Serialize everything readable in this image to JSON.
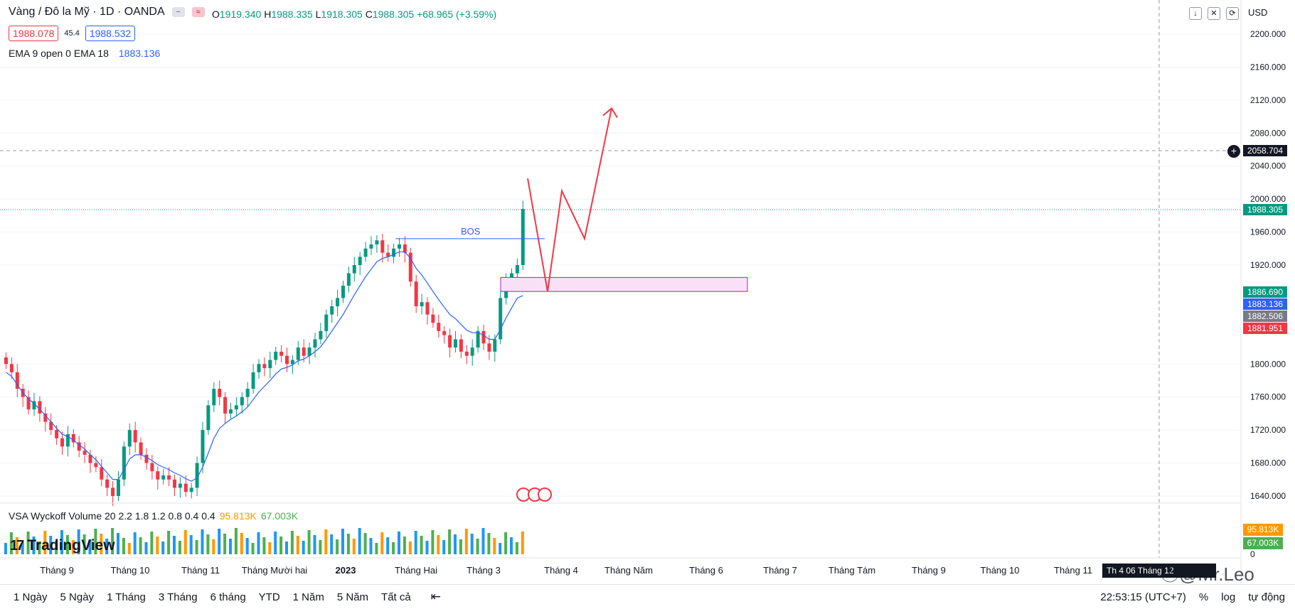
{
  "symbol": {
    "title": "Vàng / Đô la Mỹ · 1D · OANDA",
    "ohlc": {
      "o_label": "O",
      "o": "1919.340",
      "h_label": "H",
      "h": "1988.335",
      "l_label": "L",
      "l": "1918.305",
      "c_label": "C",
      "c": "1988.305",
      "change": "+68.965 (+3.59%)"
    },
    "bid": "1988.078",
    "spread": "45.4",
    "ask": "1988.532"
  },
  "indicators": {
    "ema_label": "EMA 9 open 0 EMA 18",
    "ema_value": "1883.136",
    "vsa_label": "VSA Wyckoff Volume 20 2.2 1.8 1.2 0.8 0.4 0.4",
    "vsa_value_a": "95.813K",
    "vsa_value_b": "67.003K"
  },
  "branding": {
    "logo_mark": "17",
    "logo_text": "TradingView",
    "watermark": "Mr.Leo"
  },
  "currency": "USD",
  "toolbar_icons": [
    "arrow-down-icon",
    "collapse-icon",
    "fullscreen-icon"
  ],
  "price_axis": {
    "ticks": [
      "2200.000",
      "2160.000",
      "2120.000",
      "2080.000",
      "2040.000",
      "2000.000",
      "1960.000",
      "1920.000",
      "1800.000",
      "1760.000",
      "1720.000",
      "1680.000",
      "1640.000"
    ],
    "tags": [
      {
        "label": "2058.704",
        "color": "#131722"
      },
      {
        "label": "1988.305",
        "color": "#089981"
      },
      {
        "label": "1886.690",
        "color": "#089981"
      },
      {
        "label": "1883.136",
        "color": "#2962ff"
      },
      {
        "label": "1882.506",
        "color": "#787b86"
      },
      {
        "label": "1881.951",
        "color": "#f23645"
      }
    ],
    "volume_tags": [
      {
        "label": "95.813K",
        "color": "#ff9800"
      },
      {
        "label": "67.003K",
        "color": "#4caf50"
      }
    ],
    "volume_zero": "0"
  },
  "time_axis": {
    "labels": [
      {
        "text": "Tháng 9",
        "bold": false
      },
      {
        "text": "Tháng 10",
        "bold": false
      },
      {
        "text": "Tháng 11",
        "bold": false
      },
      {
        "text": "Tháng Mười hai",
        "bold": false
      },
      {
        "text": "2023",
        "bold": true
      },
      {
        "text": "Tháng Hai",
        "bold": false
      },
      {
        "text": "Tháng 3",
        "bold": false
      },
      {
        "text": "Tháng 4",
        "bold": false
      },
      {
        "text": "Tháng Năm",
        "bold": false
      },
      {
        "text": "Tháng 6",
        "bold": false
      },
      {
        "text": "Tháng 7",
        "bold": false
      },
      {
        "text": "Tháng Tám",
        "bold": false
      },
      {
        "text": "Tháng 9",
        "bold": false
      },
      {
        "text": "Tháng 10",
        "bold": false
      },
      {
        "text": "Tháng 11",
        "bold": false
      }
    ],
    "cursor_date": "Th 4 06 Tháng 12"
  },
  "annotations": {
    "bos_label": "BOS"
  },
  "ranges": [
    "1 Ngày",
    "5 Ngày",
    "1 Tháng",
    "3 Tháng",
    "6 tháng",
    "YTD",
    "1 Năm",
    "5 Năm",
    "Tất cả"
  ],
  "footer": {
    "clock": "22:53:15 (UTC+7)",
    "percent": "%",
    "log": "log",
    "auto": "tự động"
  },
  "colors": {
    "up": "#089981",
    "down": "#f23645",
    "ema": "#2962ff",
    "arrow": "#f23645",
    "zone_fill": "#f8e1f7",
    "zone_stroke": "#9c27b0"
  },
  "chart_data": {
    "type": "candlestick",
    "ylim": [
      1620,
      2220
    ],
    "candles_close_path": [
      1800,
      1790,
      1770,
      1760,
      1745,
      1755,
      1740,
      1730,
      1720,
      1710,
      1700,
      1715,
      1705,
      1695,
      1690,
      1680,
      1675,
      1660,
      1650,
      1640,
      1660,
      1700,
      1720,
      1705,
      1690,
      1680,
      1670,
      1660,
      1665,
      1660,
      1650,
      1655,
      1645,
      1650,
      1680,
      1720,
      1750,
      1770,
      1760,
      1740,
      1745,
      1750,
      1760,
      1770,
      1790,
      1800,
      1795,
      1805,
      1815,
      1810,
      1800,
      1805,
      1820,
      1810,
      1820,
      1830,
      1840,
      1860,
      1870,
      1880,
      1895,
      1910,
      1920,
      1930,
      1940,
      1945,
      1950,
      1935,
      1930,
      1940,
      1945,
      1935,
      1900,
      1870,
      1875,
      1860,
      1850,
      1840,
      1835,
      1820,
      1830,
      1815,
      1810,
      1820,
      1840,
      1825,
      1815,
      1830,
      1880,
      1900,
      1910,
      1920,
      1988
    ],
    "ema_path": [
      1790,
      1785,
      1775,
      1765,
      1758,
      1752,
      1745,
      1738,
      1730,
      1722,
      1715,
      1712,
      1708,
      1702,
      1697,
      1690,
      1684,
      1676,
      1668,
      1660,
      1660,
      1672,
      1685,
      1690,
      1690,
      1687,
      1683,
      1678,
      1675,
      1672,
      1668,
      1665,
      1661,
      1658,
      1662,
      1675,
      1692,
      1710,
      1722,
      1728,
      1733,
      1737,
      1742,
      1748,
      1757,
      1766,
      1773,
      1780,
      1788,
      1794,
      1796,
      1799,
      1804,
      1806,
      1810,
      1815,
      1821,
      1830,
      1840,
      1850,
      1860,
      1872,
      1884,
      1895,
      1906,
      1915,
      1924,
      1928,
      1930,
      1933,
      1936,
      1936,
      1928,
      1916,
      1908,
      1898,
      1888,
      1878,
      1869,
      1860,
      1855,
      1848,
      1841,
      1838,
      1838,
      1835,
      1830,
      1830,
      1842,
      1856,
      1868,
      1880,
      1883
    ],
    "bos_level": 1952,
    "zone": [
      1888,
      1905
    ],
    "projection": [
      [
        2025
      ],
      [
        1888
      ],
      [
        2010
      ],
      [
        1952
      ],
      [
        2110
      ]
    ]
  }
}
